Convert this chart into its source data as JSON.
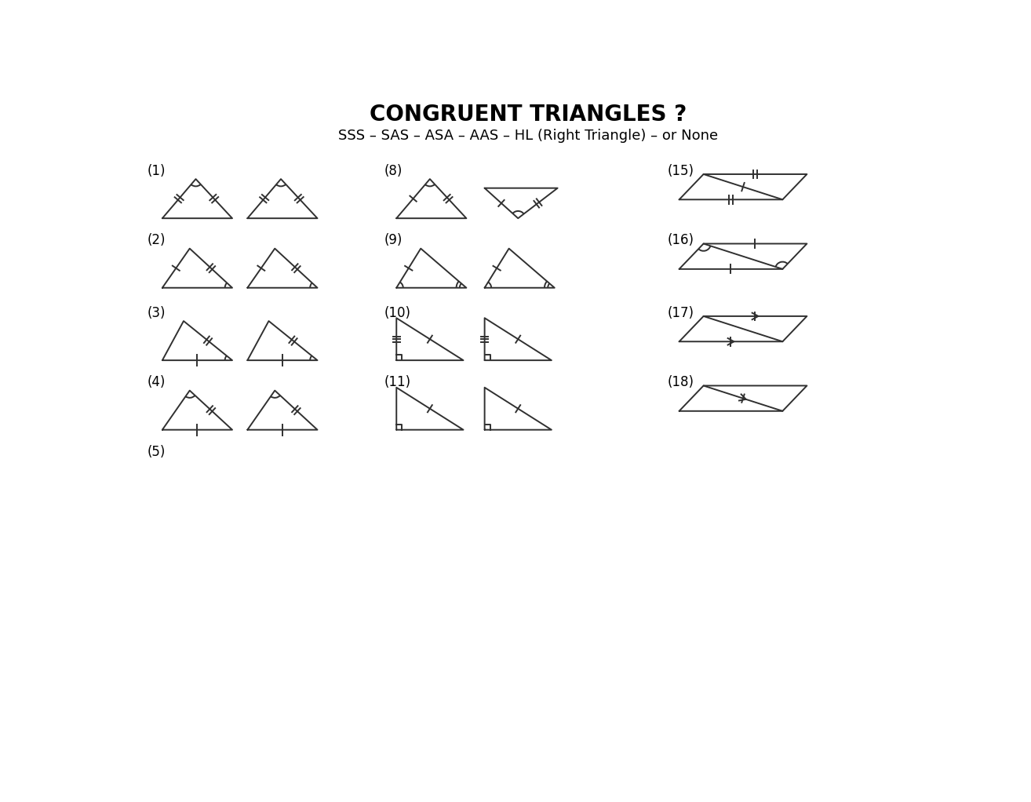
{
  "title": "CONGRUENT TRIANGLES ?",
  "subtitle": "SSS – SAS – ASA – AAS – HL (Right Triangle) – or None",
  "bg_color": "#ffffff",
  "line_color": "#303030",
  "text_color": "#000000",
  "title_fontsize": 20,
  "subtitle_fontsize": 13,
  "label_fontsize": 12
}
